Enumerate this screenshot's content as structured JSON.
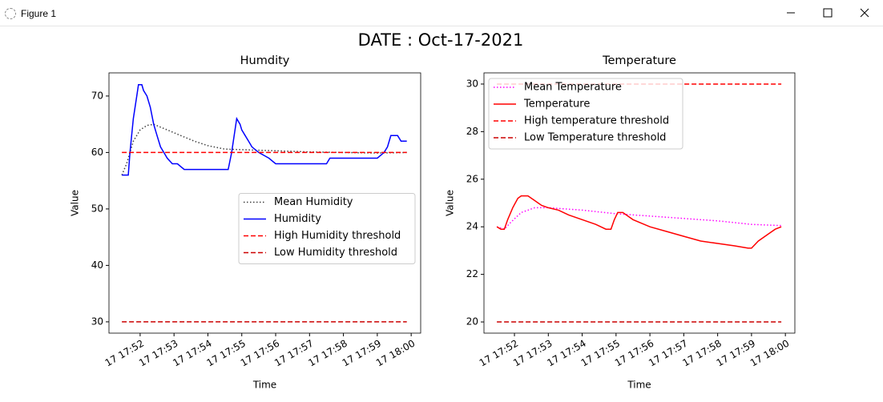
{
  "window": {
    "title": "Figure 1"
  },
  "title": "DATE : Oct-17-2021",
  "chart_data": [
    {
      "type": "line",
      "title": "Humdity",
      "xlabel": "Time",
      "ylabel": "Value",
      "xlim": [
        51.08,
        60.28
      ],
      "ylim": [
        28,
        74.1
      ],
      "xticks": [
        {
          "value": 52,
          "label": "17 17:52"
        },
        {
          "value": 53,
          "label": "17 17:53"
        },
        {
          "value": 54,
          "label": "17 17:54"
        },
        {
          "value": 55,
          "label": "17 17:55"
        },
        {
          "value": 56,
          "label": "17 17:56"
        },
        {
          "value": 57,
          "label": "17 17:57"
        },
        {
          "value": 58,
          "label": "17 17:58"
        },
        {
          "value": 59,
          "label": "17 17:59"
        },
        {
          "value": 60,
          "label": "17 18:00"
        }
      ],
      "yticks": [
        30,
        40,
        50,
        60,
        70
      ],
      "legend": "center right",
      "series": [
        {
          "name": "Mean Humidity",
          "color": "#404040",
          "linestyle": "dotted",
          "x": [
            51.46,
            51.6,
            51.8,
            52.0,
            52.2,
            52.4,
            52.8,
            53.2,
            53.6,
            54.0,
            54.5,
            55.0,
            55.5,
            56.0,
            57.0,
            58.0,
            59.0,
            59.87
          ],
          "values": [
            56,
            58,
            62,
            64,
            64.8,
            65,
            64,
            63,
            62,
            61.2,
            60.6,
            60.5,
            60.4,
            60.3,
            60.1,
            60,
            59.9,
            60
          ]
        },
        {
          "name": "Humidity",
          "color": "#0000ff",
          "linestyle": "solid",
          "x": [
            51.46,
            51.65,
            51.7,
            51.8,
            51.9,
            51.95,
            52.05,
            52.1,
            52.2,
            52.3,
            52.4,
            52.5,
            52.6,
            52.7,
            52.8,
            52.95,
            53.1,
            53.3,
            54.0,
            54.6,
            54.7,
            54.8,
            54.85,
            54.95,
            55.0,
            55.1,
            55.2,
            55.3,
            55.5,
            55.8,
            56.0,
            57.0,
            57.5,
            57.6,
            59.0,
            59.2,
            59.3,
            59.4,
            59.6,
            59.7,
            59.87
          ],
          "values": [
            56,
            56,
            60,
            66,
            70,
            72,
            72,
            71,
            70,
            68,
            65,
            63,
            61,
            60,
            59,
            58,
            58,
            57,
            57,
            57,
            60,
            64,
            66,
            65,
            64,
            63,
            62,
            61,
            60,
            59,
            58,
            58,
            58,
            59,
            59,
            60,
            61,
            63,
            63,
            62,
            62
          ]
        },
        {
          "name": "High Humidity threshold",
          "color": "#ff0000",
          "linestyle": "dashed",
          "x": [
            51.46,
            59.87
          ],
          "values": [
            60,
            60
          ]
        },
        {
          "name": "Low Humidity threshold",
          "color": "#cc0000",
          "linestyle": "dashed",
          "x": [
            51.46,
            59.87
          ],
          "values": [
            30,
            30
          ]
        }
      ]
    },
    {
      "type": "line",
      "title": "Temperature",
      "xlabel": "Time",
      "ylabel": "Value",
      "xlim": [
        51.1,
        60.28
      ],
      "ylim": [
        19.53,
        30.47
      ],
      "xticks": [
        {
          "value": 52,
          "label": "17 17:52"
        },
        {
          "value": 53,
          "label": "17 17:53"
        },
        {
          "value": 54,
          "label": "17 17:54"
        },
        {
          "value": 55,
          "label": "17 17:55"
        },
        {
          "value": 56,
          "label": "17 17:56"
        },
        {
          "value": 57,
          "label": "17 17:57"
        },
        {
          "value": 58,
          "label": "17 17:58"
        },
        {
          "value": 59,
          "label": "17 17:59"
        },
        {
          "value": 60,
          "label": "17 18:00"
        }
      ],
      "yticks": [
        20,
        22,
        24,
        26,
        28,
        30
      ],
      "legend": "upper left",
      "series": [
        {
          "name": "Mean Temperature",
          "color": "#ff00ff",
          "linestyle": "dotted",
          "x": [
            51.48,
            51.7,
            51.9,
            52.2,
            52.6,
            53.0,
            54.0,
            55.0,
            56.0,
            57.0,
            58.0,
            59.0,
            59.88
          ],
          "values": [
            24.0,
            23.9,
            24.2,
            24.6,
            24.8,
            24.8,
            24.7,
            24.55,
            24.45,
            24.35,
            24.25,
            24.1,
            24.05
          ]
        },
        {
          "name": "Temperature",
          "color": "#ff0000",
          "linestyle": "solid",
          "x": [
            51.48,
            51.6,
            51.7,
            51.8,
            51.95,
            52.1,
            52.2,
            52.4,
            52.6,
            52.8,
            53.0,
            53.3,
            53.6,
            54.0,
            54.4,
            54.7,
            54.85,
            54.95,
            55.05,
            55.2,
            55.5,
            56.0,
            56.5,
            57.0,
            57.5,
            58.0,
            58.5,
            58.9,
            59.0,
            59.2,
            59.5,
            59.7,
            59.88
          ],
          "values": [
            24.0,
            23.9,
            23.9,
            24.3,
            24.8,
            25.2,
            25.3,
            25.3,
            25.1,
            24.9,
            24.8,
            24.7,
            24.5,
            24.3,
            24.1,
            23.9,
            23.9,
            24.3,
            24.6,
            24.6,
            24.3,
            24.0,
            23.8,
            23.6,
            23.4,
            23.3,
            23.2,
            23.1,
            23.1,
            23.4,
            23.7,
            23.9,
            24.0
          ]
        },
        {
          "name": "High temperature threshold",
          "color": "#ff0000",
          "linestyle": "dashed",
          "x": [
            51.48,
            59.88
          ],
          "values": [
            30,
            30
          ]
        },
        {
          "name": "Low Temperature threshold",
          "color": "#cc0000",
          "linestyle": "dashed",
          "x": [
            51.48,
            59.88
          ],
          "values": [
            20,
            20
          ]
        }
      ]
    }
  ]
}
